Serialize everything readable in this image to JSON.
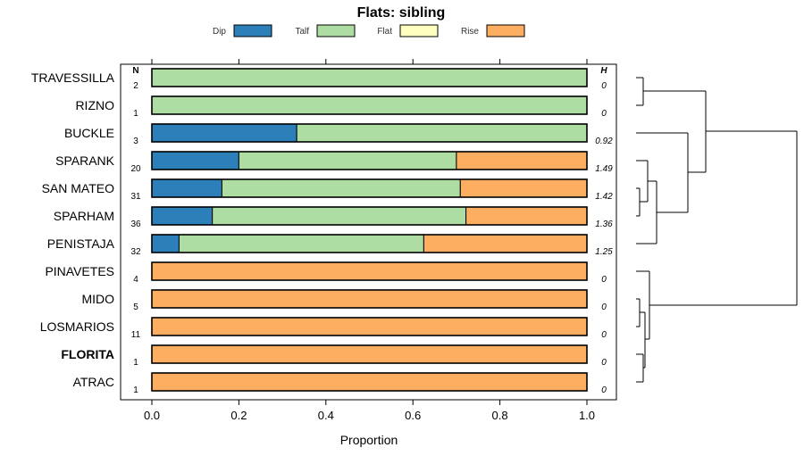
{
  "chart_data": {
    "type": "bar",
    "orientation": "horizontal",
    "stacked": true,
    "title": "Flats: sibling",
    "xlabel": "Proportion",
    "ylabel": "",
    "xlim": [
      0,
      1
    ],
    "xticks": [
      "0.0",
      "0.2",
      "0.4",
      "0.6",
      "0.8",
      "1.0"
    ],
    "n_header": "N",
    "h_header": "H",
    "legend": [
      {
        "name": "Dip",
        "color": "#2c7fb8"
      },
      {
        "name": "Talf",
        "color": "#addda3"
      },
      {
        "name": "Flat",
        "color": "#ffffbf"
      },
      {
        "name": "Rise",
        "color": "#fdae61"
      }
    ],
    "rows": [
      {
        "label": "TRAVESSILLA",
        "n": "2",
        "h": "0",
        "bold": false,
        "values": [
          0,
          1,
          0,
          0
        ]
      },
      {
        "label": "RIZNO",
        "n": "1",
        "h": "0",
        "bold": false,
        "values": [
          0,
          1,
          0,
          0
        ]
      },
      {
        "label": "BUCKLE",
        "n": "3",
        "h": "0.92",
        "bold": false,
        "values": [
          0.333,
          0.667,
          0,
          0
        ]
      },
      {
        "label": "SPARANK",
        "n": "20",
        "h": "1.49",
        "bold": false,
        "values": [
          0.2,
          0.5,
          0,
          0.3
        ]
      },
      {
        "label": "SAN MATEO",
        "n": "31",
        "h": "1.42",
        "bold": false,
        "values": [
          0.161,
          0.548,
          0,
          0.291
        ]
      },
      {
        "label": "SPARHAM",
        "n": "36",
        "h": "1.36",
        "bold": false,
        "values": [
          0.139,
          0.583,
          0,
          0.278
        ]
      },
      {
        "label": "PENISTAJA",
        "n": "32",
        "h": "1.25",
        "bold": false,
        "values": [
          0.0625,
          0.5625,
          0,
          0.375
        ]
      },
      {
        "label": "PINAVETES",
        "n": "4",
        "h": "0",
        "bold": false,
        "values": [
          0,
          0,
          0,
          1
        ]
      },
      {
        "label": "MIDO",
        "n": "5",
        "h": "0",
        "bold": false,
        "values": [
          0,
          0,
          0,
          1
        ]
      },
      {
        "label": "LOSMARIOS",
        "n": "11",
        "h": "0",
        "bold": false,
        "values": [
          0,
          0,
          0,
          1
        ]
      },
      {
        "label": "FLORITA",
        "n": "1",
        "h": "0",
        "bold": true,
        "values": [
          0,
          0,
          0,
          1
        ]
      },
      {
        "label": "ATRAC",
        "n": "1",
        "h": "0",
        "bold": false,
        "values": [
          0,
          0,
          0,
          1
        ]
      }
    ]
  }
}
